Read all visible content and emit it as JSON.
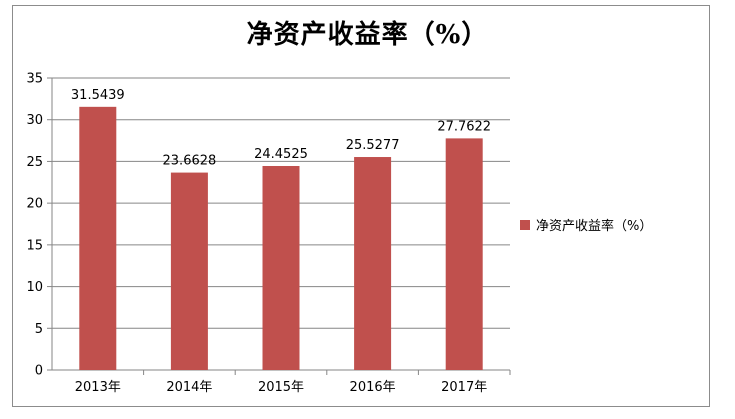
{
  "chart_data": {
    "type": "bar",
    "title": "净资产收益率（%）",
    "categories": [
      "2013年",
      "2014年",
      "2015年",
      "2016年",
      "2017年"
    ],
    "series": [
      {
        "name": "净资产收益率（%）",
        "values": [
          31.5439,
          23.6628,
          24.4525,
          25.5277,
          27.7622
        ],
        "data_labels": [
          "31.5439",
          "23.6628",
          "24.4525",
          "25.5277",
          "27.7622"
        ],
        "color": "#c0504d"
      }
    ],
    "ylim": [
      0,
      35
    ],
    "yticks": [
      0,
      5,
      10,
      15,
      20,
      25,
      30,
      35
    ],
    "xlabel": "",
    "ylabel": "",
    "grid": true,
    "legend_position": "right"
  }
}
